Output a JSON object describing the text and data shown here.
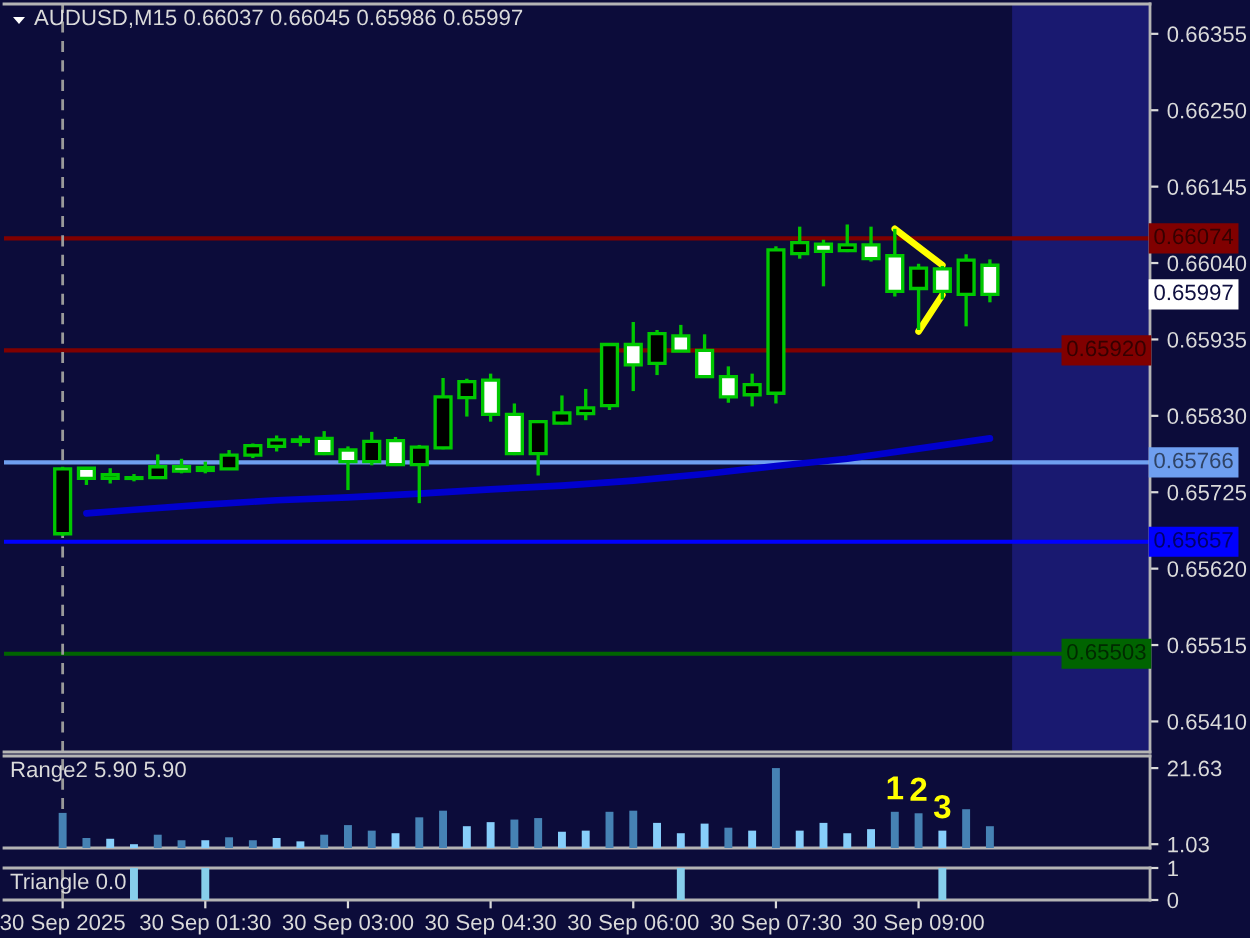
{
  "chart_data": [
    {
      "type": "candlestick",
      "title": "AUDUSD,M15 0.66037 0.66045 0.65986 0.65997",
      "x": [
        "2025-09-30T00:00",
        "2025-09-30T00:15",
        "2025-09-30T00:30",
        "2025-09-30T00:45",
        "2025-09-30T01:00",
        "2025-09-30T01:15",
        "2025-09-30T01:30",
        "2025-09-30T01:45",
        "2025-09-30T02:00",
        "2025-09-30T02:15",
        "2025-09-30T02:30",
        "2025-09-30T02:45",
        "2025-09-30T03:00",
        "2025-09-30T03:15",
        "2025-09-30T03:30",
        "2025-09-30T03:45",
        "2025-09-30T04:00",
        "2025-09-30T04:15",
        "2025-09-30T04:30",
        "2025-09-30T04:45",
        "2025-09-30T05:00",
        "2025-09-30T05:15",
        "2025-09-30T05:30",
        "2025-09-30T05:45",
        "2025-09-30T06:00",
        "2025-09-30T06:15",
        "2025-09-30T06:30",
        "2025-09-30T06:45",
        "2025-09-30T07:00",
        "2025-09-30T07:15",
        "2025-09-30T07:30",
        "2025-09-30T07:45",
        "2025-09-30T08:00",
        "2025-09-30T08:15",
        "2025-09-30T08:30",
        "2025-09-30T08:45",
        "2025-09-30T09:00",
        "2025-09-30T09:15",
        "2025-09-30T09:30",
        "2025-09-30T09:45"
      ],
      "ohlc": [
        [
          0.65668,
          0.6576,
          0.65665,
          0.65757
        ],
        [
          0.65758,
          0.65758,
          0.65735,
          0.65744
        ],
        [
          0.65744,
          0.65758,
          0.65737,
          0.65749
        ],
        [
          0.65744,
          0.6575,
          0.6574,
          0.65745
        ],
        [
          0.65745,
          0.65777,
          0.65744,
          0.6576
        ],
        [
          0.6576,
          0.65771,
          0.65751,
          0.65754
        ],
        [
          0.65755,
          0.65767,
          0.65751,
          0.65759
        ],
        [
          0.65757,
          0.65783,
          0.65756,
          0.65776
        ],
        [
          0.65776,
          0.65792,
          0.65772,
          0.65789
        ],
        [
          0.65788,
          0.65803,
          0.65781,
          0.65797
        ],
        [
          0.65797,
          0.65803,
          0.65788,
          0.65795
        ],
        [
          0.65799,
          0.65809,
          0.65776,
          0.65778
        ],
        [
          0.65783,
          0.65788,
          0.65728,
          0.65767
        ],
        [
          0.65767,
          0.65808,
          0.65762,
          0.65795
        ],
        [
          0.65796,
          0.65801,
          0.65761,
          0.65763
        ],
        [
          0.65763,
          0.6579,
          0.6571,
          0.65787
        ],
        [
          0.65786,
          0.65882,
          0.65784,
          0.65856
        ],
        [
          0.65855,
          0.65881,
          0.65829,
          0.65877
        ],
        [
          0.65879,
          0.65888,
          0.65822,
          0.65832
        ],
        [
          0.65832,
          0.65847,
          0.65776,
          0.65778
        ],
        [
          0.65778,
          0.65824,
          0.65748,
          0.65822
        ],
        [
          0.6582,
          0.65858,
          0.65818,
          0.65834
        ],
        [
          0.65833,
          0.65867,
          0.65824,
          0.65841
        ],
        [
          0.65844,
          0.65929,
          0.65838,
          0.65928
        ],
        [
          0.65928,
          0.65959,
          0.65864,
          0.659
        ],
        [
          0.65902,
          0.65948,
          0.65886,
          0.65943
        ],
        [
          0.6594,
          0.65955,
          0.65918,
          0.65919
        ],
        [
          0.6592,
          0.65942,
          0.65883,
          0.65884
        ],
        [
          0.65884,
          0.65898,
          0.65848,
          0.65856
        ],
        [
          0.65859,
          0.65888,
          0.65843,
          0.65873
        ],
        [
          0.65861,
          0.66063,
          0.65847,
          0.66058
        ],
        [
          0.66053,
          0.6609,
          0.66046,
          0.66068
        ],
        [
          0.66066,
          0.66072,
          0.66008,
          0.66056
        ],
        [
          0.66057,
          0.66093,
          0.66055,
          0.66065
        ],
        [
          0.66065,
          0.6609,
          0.66042,
          0.66046
        ],
        [
          0.6605,
          0.66087,
          0.65994,
          0.66001
        ],
        [
          0.66005,
          0.66039,
          0.65948,
          0.66033
        ],
        [
          0.66032,
          0.66036,
          0.6599,
          0.66001
        ],
        [
          0.65997,
          0.66052,
          0.65953,
          0.66044
        ],
        [
          0.66037,
          0.66045,
          0.65986,
          0.65997
        ]
      ],
      "color": "#00c800",
      "colors": [
        "#000000",
        "#ffffff",
        "#000000",
        "#000000",
        "#000000",
        "#ffffff",
        "#000000",
        "#000000",
        "#000000",
        "#000000",
        "#ffffff",
        "#ffffff",
        "#ffffff",
        "#000000",
        "#ffffff",
        "#000000",
        "#000000",
        "#000000",
        "#ffffff",
        "#ffffff",
        "#000000",
        "#000000",
        "#000000",
        "#000000",
        "#ffffff",
        "#000000",
        "#ffffff",
        "#ffffff",
        "#ffffff",
        "#000000",
        "#000000",
        "#000000",
        "#ffffff",
        "#000000",
        "#ffffff",
        "#ffffff",
        "#000000",
        "#ffffff",
        "#000000",
        "#ffffff"
      ],
      "series": [
        {
          "type": "line",
          "x": [
            "2025-09-30T00:15",
            "2025-09-30T00:45",
            "2025-09-30T01:30",
            "2025-09-30T02:15",
            "2025-09-30T03:00",
            "2025-09-30T03:45",
            "2025-09-30T04:30",
            "2025-09-30T05:15",
            "2025-09-30T06:00",
            "2025-09-30T06:45",
            "2025-09-30T07:30",
            "2025-09-30T08:15",
            "2025-09-30T09:00",
            "2025-09-30T09:45"
          ],
          "values": [
            0.65696,
            0.65701,
            0.65708,
            0.65714,
            0.65718,
            0.65723,
            0.65729,
            0.65734,
            0.65741,
            0.6575,
            0.65761,
            0.65771,
            0.65785,
            0.65799
          ],
          "color": "#0000cd"
        },
        {
          "type": "line",
          "x": [
            "2025-09-30T08:45",
            "2025-09-30T09:15"
          ],
          "values": [
            0.66087,
            0.66037
          ],
          "color": "#ffff00"
        },
        {
          "type": "line",
          "x": [
            "2025-09-30T09:00",
            "2025-09-30T09:15"
          ],
          "values": [
            0.65946,
            0.65996
          ],
          "color": "#ffff00"
        }
      ],
      "xlim": [
        "2025-09-29T23:23",
        "2025-09-30T11:26"
      ],
      "ylim": [
        0.65368,
        0.66396
      ],
      "yticks": [
        0.66355,
        {
          "value": 0.6625,
          "label": "0.66250"
        },
        0.66145,
        {
          "value": 0.6604,
          "label": "0.66040"
        },
        0.65935,
        {
          "value": 0.6583,
          "label": "0.65830"
        },
        0.65725,
        {
          "value": 0.6562,
          "label": "0.65620"
        },
        0.65515,
        {
          "value": 0.6541,
          "label": "0.65410"
        }
      ],
      "tick_labels": "y",
      "ref_lines": [
        {
          "axis": "y",
          "value": 0.66074,
          "label": "0.66074",
          "color": "#800000"
        },
        {
          "axis": "y",
          "value": 0.6592,
          "label": "0.65920",
          "color": "#800000"
        },
        {
          "axis": "y",
          "value": 0.65766,
          "label": "0.65766",
          "color": "#6f9ff0"
        },
        {
          "axis": "y",
          "value": 0.65657,
          "label": "0.65657",
          "color": "#0000ff"
        },
        {
          "axis": "y",
          "value": 0.65503,
          "label": "0.65503",
          "color": "#006400"
        },
        {
          "axis": "x",
          "value": "2025-09-30T00:00",
          "color": "#9a9a9a",
          "line_style": "dashed"
        }
      ],
      "bands": [
        {
          "axis": "x",
          "from": "2025-09-30T09:59",
          "to": "2025-09-30T11:26",
          "color": "#191970"
        }
      ],
      "annotations": [
        {
          "text": "0.65997",
          "y": 0.65997
        }
      ]
    },
    {
      "type": "bar",
      "title": "Range2 5.90 5.90",
      "x": [
        "2025-09-30T00:00",
        "2025-09-30T00:15",
        "2025-09-30T00:30",
        "2025-09-30T00:45",
        "2025-09-30T01:00",
        "2025-09-30T01:15",
        "2025-09-30T01:30",
        "2025-09-30T01:45",
        "2025-09-30T02:00",
        "2025-09-30T02:15",
        "2025-09-30T02:30",
        "2025-09-30T02:45",
        "2025-09-30T03:00",
        "2025-09-30T03:15",
        "2025-09-30T03:30",
        "2025-09-30T03:45",
        "2025-09-30T04:00",
        "2025-09-30T04:15",
        "2025-09-30T04:30",
        "2025-09-30T04:45",
        "2025-09-30T05:00",
        "2025-09-30T05:15",
        "2025-09-30T05:30",
        "2025-09-30T05:45",
        "2025-09-30T06:00",
        "2025-09-30T06:15",
        "2025-09-30T06:30",
        "2025-09-30T06:45",
        "2025-09-30T07:00",
        "2025-09-30T07:15",
        "2025-09-30T07:30",
        "2025-09-30T07:45",
        "2025-09-30T08:00",
        "2025-09-30T08:15",
        "2025-09-30T08:30",
        "2025-09-30T08:45",
        "2025-09-30T09:00",
        "2025-09-30T09:15",
        "2025-09-30T09:30",
        "2025-09-30T09:45"
      ],
      "values": [
        9.5,
        2.7,
        2.5,
        1.03,
        3.6,
        2.1,
        2.1,
        2.9,
        2.1,
        2.7,
        1.8,
        3.6,
        6.2,
        4.7,
        4.0,
        8.3,
        10.1,
        5.9,
        7.0,
        7.7,
        8.1,
        4.4,
        4.7,
        9.8,
        10.1,
        6.8,
        4.0,
        6.6,
        5.5,
        4.7,
        21.63,
        4.7,
        6.8,
        4.0,
        5.1,
        9.8,
        9.4,
        4.7,
        10.5,
        5.9
      ],
      "colors": [
        "#4682b4",
        "#4682b4",
        "#87cefa",
        "#87cefa",
        "#4682b4",
        "#4682b4",
        "#87cefa",
        "#4682b4",
        "#4682b4",
        "#87cefa",
        "#87cefa",
        "#4682b4",
        "#4682b4",
        "#4682b4",
        "#87cefa",
        "#4682b4",
        "#4682b4",
        "#87cefa",
        "#87cefa",
        "#4682b4",
        "#4682b4",
        "#87cefa",
        "#87cefa",
        "#4682b4",
        "#4682b4",
        "#87cefa",
        "#87cefa",
        "#87cefa",
        "#4682b4",
        "#87cefa",
        "#4682b4",
        "#87cefa",
        "#87cefa",
        "#87cefa",
        "#87cefa",
        "#4682b4",
        "#4682b4",
        "#87cefa",
        "#4682b4",
        "#4682b4"
      ],
      "xlim": [
        "2025-09-29T23:23",
        "2025-09-30T11:26"
      ],
      "ylim": [
        0,
        24.9
      ],
      "yticks": [
        21.63,
        1.03
      ],
      "tick_labels": "y",
      "ref_lines": [
        {
          "axis": "x",
          "value": "2025-09-30T00:00",
          "color": "#9a9a9a",
          "line_style": "dashed"
        }
      ],
      "annotations": [
        {
          "text": "1",
          "x": "2025-09-30T08:45",
          "y": 9.8
        },
        {
          "text": "2",
          "x": "2025-09-30T09:00",
          "y": 9.4
        },
        {
          "text": "3",
          "x": "2025-09-30T09:15",
          "y": 4.7
        }
      ]
    },
    {
      "type": "bar",
      "title": "Triangle 0.0",
      "x": [
        "2025-09-30T00:45",
        "2025-09-30T01:30",
        "2025-09-30T06:30",
        "2025-09-30T09:15"
      ],
      "values": [
        1,
        1,
        1,
        1
      ],
      "color": "#87ceeb",
      "xlim": [
        "2025-09-29T23:23",
        "2025-09-30T11:26"
      ],
      "ylim": [
        0,
        1
      ],
      "yticks": [
        1,
        0
      ],
      "xticks": [
        {
          "value": "2025-09-30T00:00",
          "label": "30 Sep 2025"
        },
        {
          "value": "2025-09-30T01:30",
          "label": "30 Sep 01:30"
        },
        {
          "value": "2025-09-30T03:00",
          "label": "30 Sep 03:00"
        },
        {
          "value": "2025-09-30T04:30",
          "label": "30 Sep 04:30"
        },
        {
          "value": "2025-09-30T06:00",
          "label": "30 Sep 06:00"
        },
        {
          "value": "2025-09-30T07:30",
          "label": "30 Sep 07:30"
        },
        {
          "value": "2025-09-30T09:00",
          "label": "30 Sep 09:00"
        }
      ],
      "ref_lines": [
        {
          "axis": "x",
          "value": "2025-09-30T00:00",
          "color": "#9a9a9a",
          "line_style": "dashed"
        }
      ]
    }
  ]
}
